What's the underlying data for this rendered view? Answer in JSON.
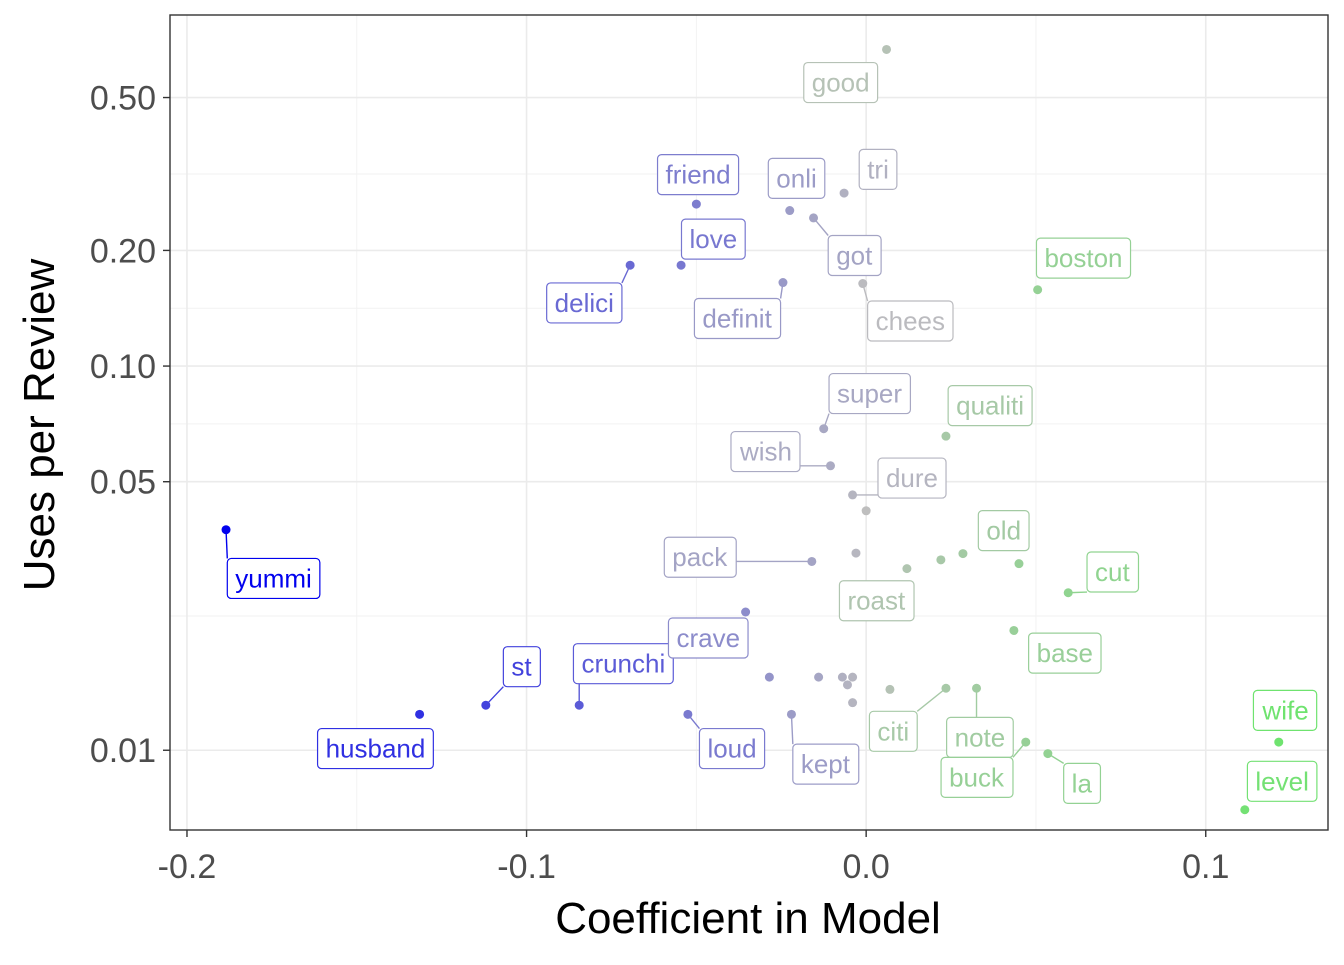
{
  "chart_data": {
    "type": "scatter",
    "title": "",
    "xlabel": "Coefficient in Model",
    "ylabel": "Uses per Review",
    "y_scale": "log",
    "xlim": [
      -0.205,
      0.136
    ],
    "ylim": [
      0.0062,
      0.82
    ],
    "x_ticks": [
      {
        "value": -0.2,
        "label": "-0.2"
      },
      {
        "value": -0.1,
        "label": "-0.1"
      },
      {
        "value": 0.0,
        "label": "0.0"
      },
      {
        "value": 0.1,
        "label": "0.1"
      }
    ],
    "y_ticks": [
      {
        "value": 0.01,
        "label": "0.01"
      },
      {
        "value": 0.05,
        "label": "0.05"
      },
      {
        "value": 0.1,
        "label": "0.10"
      },
      {
        "value": 0.2,
        "label": "0.20"
      },
      {
        "value": 0.5,
        "label": "0.50"
      }
    ],
    "grid": true,
    "legend": "none",
    "color_scale": {
      "negative": "#0000ee",
      "neutral": "#bebebe",
      "positive": "#6fe36f"
    },
    "labeled_points": [
      {
        "word": "yummi",
        "x": -0.1885,
        "y": 0.0375,
        "lx": -0.1745,
        "ly": 0.028
      },
      {
        "word": "husband",
        "x": -0.1315,
        "y": 0.0124,
        "lx": -0.1445,
        "ly": 0.0101
      },
      {
        "word": "st",
        "x": -0.112,
        "y": 0.0131,
        "lx": -0.1015,
        "ly": 0.0165
      },
      {
        "word": "crunchi",
        "x": -0.0845,
        "y": 0.0131,
        "lx": -0.0715,
        "ly": 0.0168
      },
      {
        "word": "delici",
        "x": -0.0695,
        "y": 0.183,
        "lx": -0.083,
        "ly": 0.146
      },
      {
        "word": "love",
        "x": -0.0545,
        "y": 0.183,
        "lx": -0.045,
        "ly": 0.214
      },
      {
        "word": "friend",
        "x": -0.05,
        "y": 0.264,
        "lx": -0.0495,
        "ly": 0.315
      },
      {
        "word": "loud",
        "x": -0.0525,
        "y": 0.0124,
        "lx": -0.0395,
        "ly": 0.0101
      },
      {
        "word": "crave",
        "x": -0.0355,
        "y": 0.0229,
        "lx": -0.0465,
        "ly": 0.0196
      },
      {
        "word": "pack",
        "x": -0.016,
        "y": 0.031,
        "lx": -0.049,
        "ly": 0.0318
      },
      {
        "word": "definit",
        "x": -0.0245,
        "y": 0.165,
        "lx": -0.038,
        "ly": 0.133
      },
      {
        "word": "onli",
        "x": -0.0225,
        "y": 0.254,
        "lx": -0.0205,
        "ly": 0.308
      },
      {
        "word": "kept",
        "x": -0.022,
        "y": 0.0124,
        "lx": -0.012,
        "ly": 0.0092
      },
      {
        "word": "got",
        "x": -0.0155,
        "y": 0.243,
        "lx": -0.0035,
        "ly": 0.194
      },
      {
        "word": "wish",
        "x": -0.0105,
        "y": 0.055,
        "lx": -0.0295,
        "ly": 0.0599
      },
      {
        "word": "super",
        "x": -0.0125,
        "y": 0.0687,
        "lx": 0.001,
        "ly": 0.0848
      },
      {
        "word": "tri",
        "x": -0.0065,
        "y": 0.282,
        "lx": 0.0035,
        "ly": 0.325
      },
      {
        "word": "good",
        "x": 0.006,
        "y": 0.667,
        "lx": -0.0075,
        "ly": 0.547
      },
      {
        "word": "chees",
        "x": -0.001,
        "y": 0.164,
        "lx": 0.013,
        "ly": 0.131
      },
      {
        "word": "dure",
        "x": -0.004,
        "y": 0.0462,
        "lx": 0.0135,
        "ly": 0.0511
      },
      {
        "word": "roast",
        "x": 0.012,
        "y": 0.0297,
        "lx": 0.003,
        "ly": 0.0245
      },
      {
        "word": "qualiti",
        "x": 0.0235,
        "y": 0.0657,
        "lx": 0.0365,
        "ly": 0.0789
      },
      {
        "word": "boston",
        "x": 0.0505,
        "y": 0.158,
        "lx": 0.064,
        "ly": 0.191
      },
      {
        "word": "old",
        "x": 0.0285,
        "y": 0.0325,
        "lx": 0.0405,
        "ly": 0.0373
      },
      {
        "word": "cut",
        "x": 0.0595,
        "y": 0.0257,
        "lx": 0.0725,
        "ly": 0.0291
      },
      {
        "word": "base",
        "x": 0.0435,
        "y": 0.0205,
        "lx": 0.0585,
        "ly": 0.0179
      },
      {
        "word": "citi",
        "x": 0.0235,
        "y": 0.0145,
        "lx": 0.008,
        "ly": 0.0112
      },
      {
        "word": "note",
        "x": 0.0325,
        "y": 0.0145,
        "lx": 0.0335,
        "ly": 0.0108
      },
      {
        "word": "buck",
        "x": 0.047,
        "y": 0.0105,
        "lx": 0.0325,
        "ly": 0.0085
      },
      {
        "word": "la",
        "x": 0.0535,
        "y": 0.0098,
        "lx": 0.0635,
        "ly": 0.0082
      },
      {
        "word": "wife",
        "x": 0.1215,
        "y": 0.0105,
        "lx": 0.1235,
        "ly": 0.0127
      },
      {
        "word": "level",
        "x": 0.1115,
        "y": 0.007,
        "lx": 0.1225,
        "ly": 0.0083
      }
    ],
    "unlabeled_points": [
      {
        "x": -0.0395,
        "y": 0.0325
      },
      {
        "x": -0.0285,
        "y": 0.0155
      },
      {
        "x": -0.014,
        "y": 0.0155
      },
      {
        "x": -0.007,
        "y": 0.0155
      },
      {
        "x": -0.0055,
        "y": 0.0148
      },
      {
        "x": -0.004,
        "y": 0.0155
      },
      {
        "x": -0.004,
        "y": 0.0133
      },
      {
        "x": -0.003,
        "y": 0.0326
      },
      {
        "x": 0.0,
        "y": 0.042
      },
      {
        "x": 0.007,
        "y": 0.0144
      },
      {
        "x": 0.022,
        "y": 0.0313
      },
      {
        "x": 0.045,
        "y": 0.0306
      }
    ]
  }
}
